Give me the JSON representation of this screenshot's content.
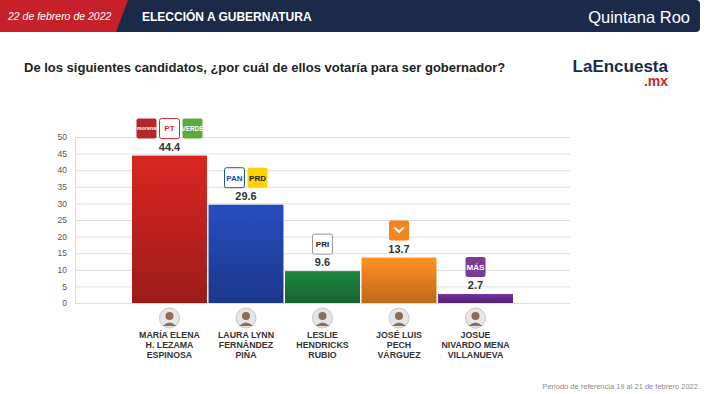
{
  "chart_data": {
    "type": "bar",
    "header_date": "22 de febrero de 2022",
    "header_label": "ELECCIÓN A GUBERNATURA",
    "header_region": "Quintana Roo",
    "title": "De los siguientes candidatos, ¿por cuál de ellos votaría para ser gobernador?",
    "brand": "LaEncuesta",
    "brand_suffix": ".mx",
    "categories": [
      "MARÍA ELENA\nH. LEZAMA\nESPINOSA",
      "LAURA LYNN\nFERNÁNDEZ\nPIÑA",
      "LESLIE\nHENDRICKS\nRUBIO",
      "JOSÉ LUIS\nPECH\nVÁRGUEZ",
      "JOSUE\nNIVARDO MENA\nVILLANUEVA"
    ],
    "values": [
      44.4,
      29.6,
      9.6,
      13.7,
      2.7
    ],
    "colors": [
      "#c8231f",
      "#2346b0",
      "#1c7c3c",
      "#f5861f",
      "#6a2c91"
    ],
    "party_logos": [
      [
        "morena",
        "PT",
        "VERDE"
      ],
      [
        "PAN",
        "PRD"
      ],
      [
        "PRI"
      ],
      [],
      [
        "MÁS"
      ]
    ],
    "ylim": [
      0,
      50
    ],
    "yticks": [
      0,
      5,
      10,
      15,
      20,
      25,
      30,
      35,
      40,
      45,
      50
    ],
    "grid": true,
    "data_labels": true,
    "footnote": "Periodo de referencia 19 al 21 de febrero 2022."
  }
}
